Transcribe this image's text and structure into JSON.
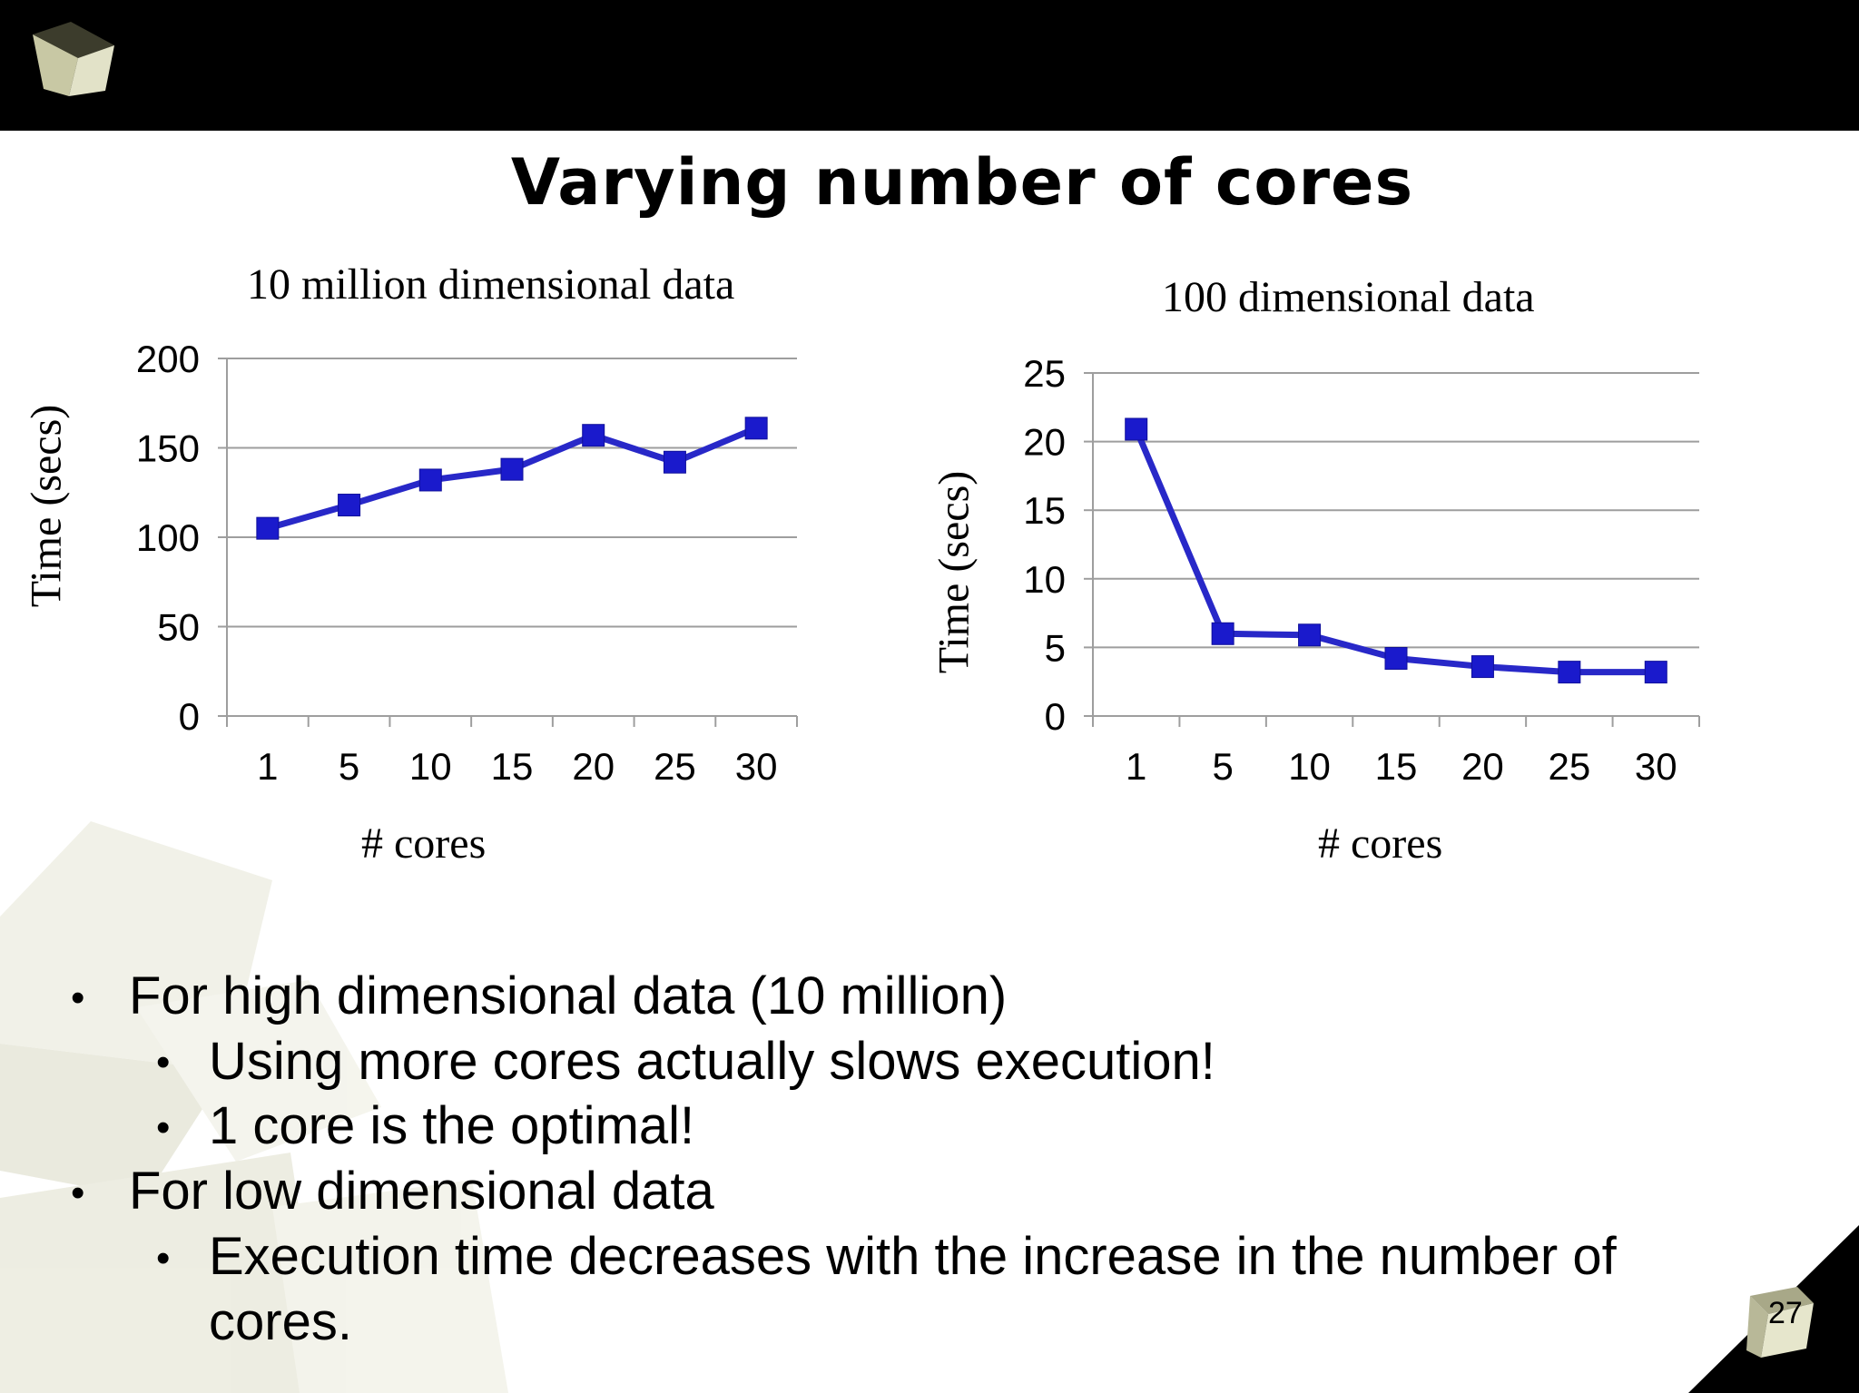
{
  "slide": {
    "title": "Varying number of cores",
    "page_number": "27"
  },
  "bullets": [
    {
      "level": 1,
      "text": "For high dimensional data (10 million)"
    },
    {
      "level": 2,
      "text": "Using more cores actually slows execution!"
    },
    {
      "level": 2,
      "text": "1 core is the optimal!"
    },
    {
      "level": 1,
      "text": "For low dimensional data"
    },
    {
      "level": 2,
      "text": "Execution time decreases with the increase in the number of"
    },
    {
      "level": 0,
      "text": "cores."
    }
  ],
  "colors": {
    "series": "#2828c8",
    "marker": "#1a1acc",
    "grid": "#9e9e9e"
  },
  "chart_data": [
    {
      "type": "line",
      "title": "10 million dimensional data",
      "xlabel": "# cores",
      "ylabel": "Time (secs)",
      "categories": [
        "1",
        "5",
        "10",
        "15",
        "20",
        "25",
        "30"
      ],
      "series": [
        {
          "values": [
            105,
            118,
            132,
            138,
            157,
            142,
            161
          ]
        }
      ],
      "ylim": [
        0,
        200
      ],
      "yticks": [
        "0",
        "50",
        "100",
        "150",
        "200"
      ],
      "grid": true
    },
    {
      "type": "line",
      "title": "100 dimensional data",
      "xlabel": "# cores",
      "ylabel": "Time (secs)",
      "categories": [
        "1",
        "5",
        "10",
        "15",
        "20",
        "25",
        "30"
      ],
      "series": [
        {
          "values": [
            20.9,
            6.0,
            5.9,
            4.2,
            3.6,
            3.2,
            3.2
          ]
        }
      ],
      "ylim": [
        0,
        25
      ],
      "yticks": [
        "0",
        "5",
        "10",
        "15",
        "20",
        "25"
      ],
      "grid": true
    }
  ]
}
